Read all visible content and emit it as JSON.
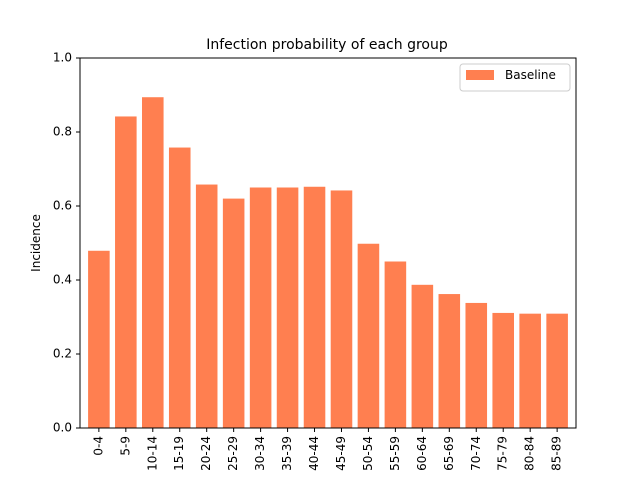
{
  "chart_data": {
    "type": "bar",
    "title": "Infection probability of each group",
    "xlabel": "",
    "ylabel": "Incidence",
    "ylim": [
      0,
      1.0
    ],
    "yticks": [
      "0.0",
      "0.2",
      "0.4",
      "0.6",
      "0.8",
      "1.0"
    ],
    "grid": false,
    "legend_position": "top-right",
    "categories": [
      "0-4",
      "5-9",
      "10-14",
      "15-19",
      "20-24",
      "25-29",
      "30-34",
      "35-39",
      "40-44",
      "45-49",
      "50-54",
      "55-59",
      "60-64",
      "65-69",
      "70-74",
      "75-79",
      "80-84",
      "85-89"
    ],
    "series": [
      {
        "name": "Baseline",
        "color": "#ff7f50",
        "values": [
          0.479,
          0.842,
          0.894,
          0.758,
          0.658,
          0.62,
          0.65,
          0.65,
          0.652,
          0.642,
          0.498,
          0.45,
          0.387,
          0.362,
          0.338,
          0.311,
          0.309,
          0.309
        ]
      }
    ]
  }
}
